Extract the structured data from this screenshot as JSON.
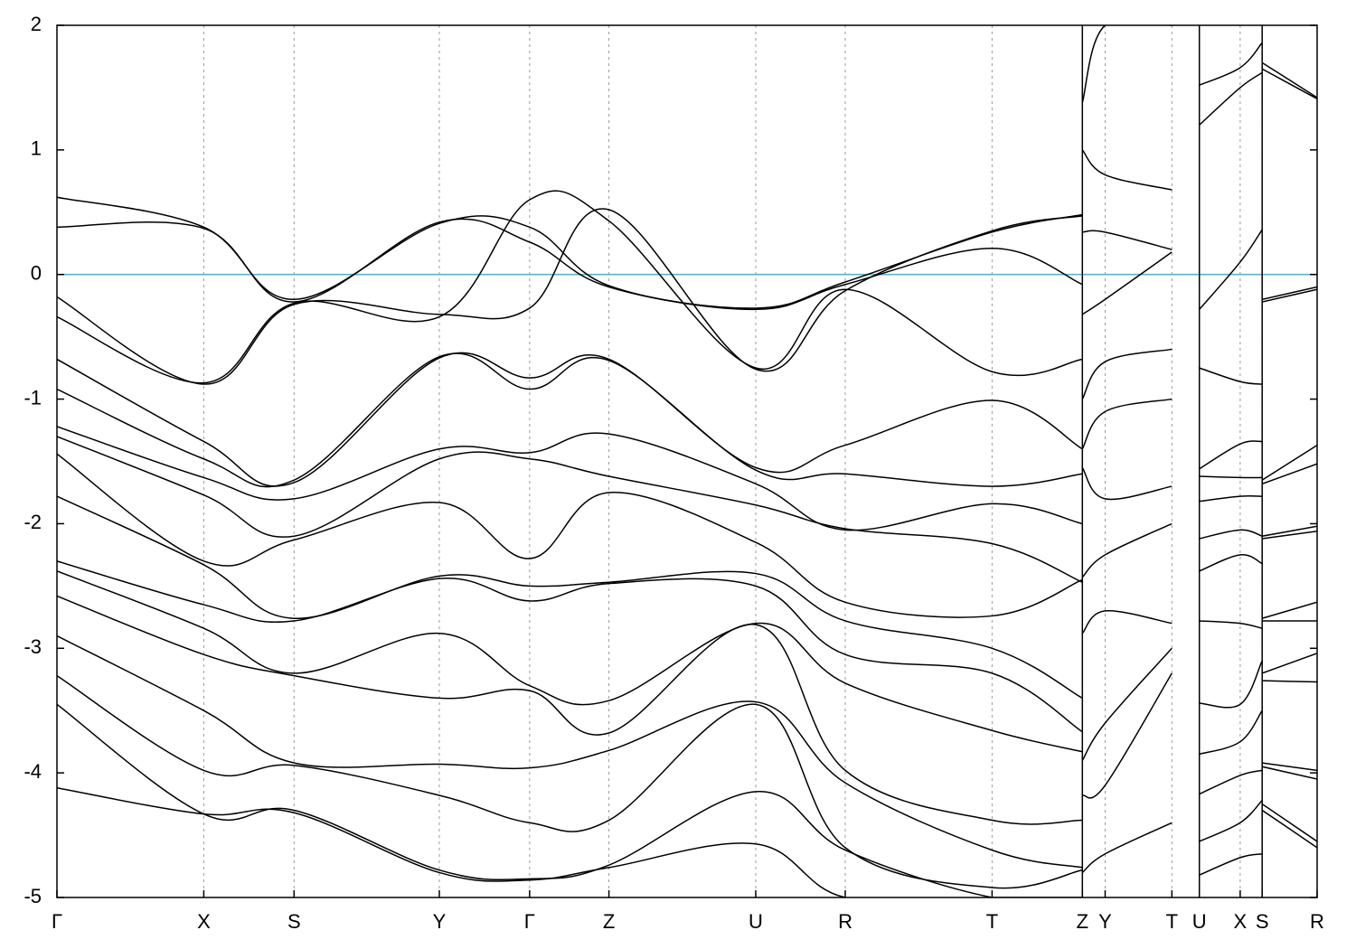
{
  "chart_data": {
    "type": "line",
    "title": "",
    "xlabel": "",
    "ylabel": "",
    "ylim": [
      -5,
      2
    ],
    "yticks": [
      {
        "value": 2,
        "label": "2"
      },
      {
        "value": 1,
        "label": "1"
      },
      {
        "value": 0,
        "label": "0"
      },
      {
        "value": -1,
        "label": "-1"
      },
      {
        "value": -2,
        "label": "-2"
      },
      {
        "value": -3,
        "label": "-3"
      },
      {
        "value": -4,
        "label": "-4"
      },
      {
        "value": -5,
        "label": "-5"
      }
    ],
    "xlim": [
      0,
      16.05
    ],
    "kpoints": [
      {
        "label": "Γ",
        "x": 0
      },
      {
        "label": "X",
        "x": 1.87
      },
      {
        "label": "S",
        "x": 3.02
      },
      {
        "label": "Y",
        "x": 4.87
      },
      {
        "label": "Γ",
        "x": 6.02
      },
      {
        "label": "Z",
        "x": 7.03
      },
      {
        "label": "U",
        "x": 8.9
      },
      {
        "label": "R",
        "x": 10.04
      },
      {
        "label": "T",
        "x": 11.91
      },
      {
        "label": "Z",
        "x": 13.06
      },
      {
        "label": "Y",
        "x": 13.35
      },
      {
        "label": "T",
        "x": 14.2
      },
      {
        "label": "U",
        "x": 14.55
      },
      {
        "label": "X",
        "x": 15.07
      },
      {
        "label": "S",
        "x": 15.35
      },
      {
        "label": "R",
        "x": 16.05
      }
    ],
    "grid": "vertical dashed at k-points",
    "fermi_level": {
      "value": 0,
      "color": "#59B3C8"
    },
    "line_color": "#000000",
    "segments": [
      {
        "x": [
          0,
          1.87,
          3.02,
          4.87,
          6.02,
          7.03,
          8.9,
          10.04,
          11.91,
          13.06
        ],
        "bands": [
          [
            0.38,
            0.37,
            -0.22,
            0.42,
            0.26,
            -0.1,
            -0.28,
            -0.08,
            0.21,
            -0.08
          ],
          [
            0.62,
            0.38,
            -0.2,
            0.41,
            0.38,
            -0.09,
            -0.27,
            -0.06,
            0.34,
            0.48
          ],
          [
            -0.18,
            -0.88,
            -0.24,
            -0.32,
            -0.27,
            0.52,
            -0.76,
            -0.13,
            0.35,
            0.47
          ],
          [
            -0.34,
            -0.87,
            -0.23,
            -0.34,
            0.6,
            0.43,
            -0.75,
            -0.12,
            -0.78,
            -0.68
          ],
          [
            -0.68,
            -1.34,
            -1.67,
            -0.67,
            -0.83,
            -0.68,
            -1.55,
            -1.37,
            -1.01,
            -1.4
          ],
          [
            -0.92,
            -1.48,
            -1.65,
            -0.66,
            -0.92,
            -0.69,
            -1.57,
            -1.6,
            -1.7,
            -1.6
          ],
          [
            -1.22,
            -1.63,
            -1.8,
            -1.4,
            -1.43,
            -1.28,
            -1.68,
            -2.05,
            -1.84,
            -2.0
          ],
          [
            -1.3,
            -1.77,
            -2.1,
            -1.48,
            -1.48,
            -1.62,
            -1.85,
            -2.04,
            -2.16,
            -2.47
          ],
          [
            -1.44,
            -2.3,
            -2.13,
            -1.83,
            -2.28,
            -1.75,
            -2.15,
            -2.63,
            -2.74,
            -2.45
          ],
          [
            -1.78,
            -2.33,
            -2.76,
            -2.42,
            -2.5,
            -2.47,
            -2.4,
            -2.78,
            -3.0,
            -3.4
          ],
          [
            -2.3,
            -2.65,
            -2.78,
            -2.44,
            -2.62,
            -2.48,
            -2.5,
            -3.05,
            -3.2,
            -3.67
          ],
          [
            -2.38,
            -2.84,
            -3.2,
            -2.88,
            -3.3,
            -3.42,
            -2.8,
            -3.28,
            -3.66,
            -3.83
          ],
          [
            -2.58,
            -3.05,
            -3.22,
            -3.4,
            -3.34,
            -3.68,
            -2.81,
            -3.98,
            -4.38,
            -4.38
          ],
          [
            -2.9,
            -3.5,
            -3.92,
            -3.93,
            -3.96,
            -3.82,
            -3.43,
            -4.08,
            -4.62,
            -4.76
          ],
          [
            -3.22,
            -3.98,
            -3.94,
            -4.18,
            -4.4,
            -4.38,
            -3.45,
            -4.6,
            -4.92,
            -4.78
          ],
          [
            -3.45,
            -4.33,
            -4.3,
            -4.78,
            -4.85,
            -4.74,
            -4.15,
            -4.62,
            -5.0,
            -5.0
          ],
          [
            -4.12,
            -4.33,
            -4.32,
            -4.8,
            -4.86,
            -4.76,
            -4.57,
            -5.0,
            -5.0,
            -5.0
          ]
        ]
      },
      {
        "x": [
          13.06,
          13.35,
          14.2
        ],
        "bands": [
          [
            1.38,
            2.0,
            2.0
          ],
          [
            1.0,
            0.8,
            0.68
          ],
          [
            0.34,
            0.34,
            0.2
          ],
          [
            -0.32,
            -0.2,
            0.18
          ],
          [
            -1.0,
            -0.7,
            -0.6
          ],
          [
            -1.4,
            -1.1,
            -1.0
          ],
          [
            -1.55,
            -1.8,
            -1.7
          ],
          [
            -2.43,
            -2.25,
            -2.0
          ],
          [
            -2.88,
            -2.7,
            -2.8
          ],
          [
            -3.9,
            -3.6,
            -3.0
          ],
          [
            -4.18,
            -4.1,
            -3.2
          ],
          [
            -4.8,
            -4.65,
            -4.4
          ]
        ]
      },
      {
        "x": [
          14.55,
          15.07,
          15.35
        ],
        "bands": [
          [
            1.52,
            1.66,
            1.86
          ],
          [
            1.2,
            1.5,
            1.62
          ],
          [
            -0.28,
            0.1,
            0.36
          ],
          [
            -0.75,
            -0.86,
            -0.88
          ],
          [
            -1.56,
            -1.36,
            -1.34
          ],
          [
            -1.62,
            -1.63,
            -1.63
          ],
          [
            -1.82,
            -1.78,
            -1.78
          ],
          [
            -2.12,
            -2.05,
            -2.1
          ],
          [
            -2.38,
            -2.25,
            -2.32
          ],
          [
            -2.78,
            -2.8,
            -2.84
          ],
          [
            -3.44,
            -3.45,
            -3.1
          ],
          [
            -3.85,
            -3.75,
            -3.5
          ],
          [
            -4.17,
            -4.02,
            -3.98
          ],
          [
            -4.55,
            -4.4,
            -4.22
          ],
          [
            -4.82,
            -4.68,
            -4.65
          ]
        ]
      },
      {
        "x": [
          15.35,
          16.05
        ],
        "bands": [
          [
            1.7,
            1.42
          ],
          [
            1.65,
            1.41
          ],
          [
            -0.2,
            -0.1
          ],
          [
            -0.22,
            -0.12
          ],
          [
            -1.65,
            -1.37
          ],
          [
            -1.68,
            -1.52
          ],
          [
            -2.1,
            -2.02
          ],
          [
            -2.12,
            -2.06
          ],
          [
            -2.76,
            -2.63
          ],
          [
            -2.78,
            -2.78
          ],
          [
            -3.2,
            -3.04
          ],
          [
            -3.26,
            -3.27
          ],
          [
            -3.92,
            -3.98
          ],
          [
            -3.95,
            -4.05
          ],
          [
            -4.25,
            -4.55
          ],
          [
            -4.3,
            -4.6
          ]
        ]
      }
    ]
  }
}
